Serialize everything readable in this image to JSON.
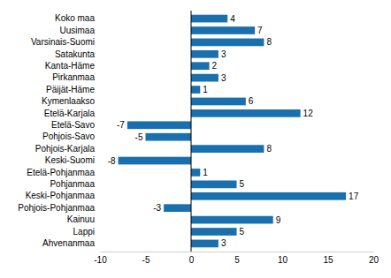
{
  "chart_data": {
    "type": "bar",
    "orientation": "horizontal",
    "data_labels": true,
    "color": "#1a70ae",
    "grid": false,
    "categories": [
      "Koko maa",
      "Uusimaa",
      "Varsinais-Suomi",
      "Satakunta",
      "Kanta-Häme",
      "Pirkanmaa",
      "Päijät-Häme",
      "Kymenlaakso",
      "Etelä-Karjala",
      "Etelä-Savo",
      "Pohjois-Savo",
      "Pohjois-Karjala",
      "Keski-Suomi",
      "Etelä-Pohjanmaa",
      "Pohjanmaa",
      "Keski-Pohjanmaa",
      "Pohjois-Pohjanmaa",
      "Kainuu",
      "Lappi",
      "Ahvenanmaa"
    ],
    "values": [
      4,
      7,
      8,
      3,
      2,
      3,
      1,
      6,
      12,
      -7,
      -5,
      8,
      -8,
      1,
      5,
      17,
      -3,
      9,
      5,
      3
    ],
    "xlim": [
      -10,
      20
    ],
    "xticks": [
      -10,
      -5,
      0,
      5,
      10,
      15,
      20
    ]
  }
}
